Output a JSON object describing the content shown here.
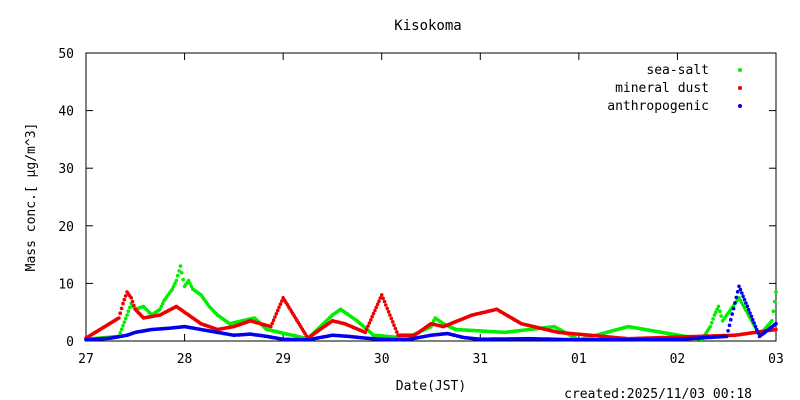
{
  "chart_data": {
    "type": "scatter",
    "title": "Kisokoma",
    "xlabel": "Date(JST)",
    "ylabel": "Mass conc.[ μg/m^3]",
    "ylim": [
      0,
      50
    ],
    "yticks": [
      0,
      10,
      20,
      30,
      40,
      50
    ],
    "xlim": [
      "2025-10-27",
      "2025-11-03"
    ],
    "xticks": [
      "27",
      "28",
      "29",
      "30",
      "31",
      "01",
      "02",
      "03"
    ],
    "grid": false,
    "legend_position": "top-right",
    "series": [
      {
        "name": "sea-salt",
        "color": "#00ee00",
        "points": [
          [
            "2025-10-27 00:00",
            0.3
          ],
          [
            "2025-10-27 08:00",
            0.8
          ],
          [
            "2025-10-27 10:00",
            4.5
          ],
          [
            "2025-10-27 11:00",
            6.5
          ],
          [
            "2025-10-27 12:00",
            5.5
          ],
          [
            "2025-10-27 14:00",
            6.0
          ],
          [
            "2025-10-27 16:00",
            4.5
          ],
          [
            "2025-10-27 18:00",
            5.5
          ],
          [
            "2025-10-27 19:00",
            7.0
          ],
          [
            "2025-10-27 20:00",
            8.0
          ],
          [
            "2025-10-27 21:00",
            9.0
          ],
          [
            "2025-10-27 22:00",
            10.5
          ],
          [
            "2025-10-27 23:00",
            13.0
          ],
          [
            "2025-10-28 00:00",
            9.5
          ],
          [
            "2025-10-28 01:00",
            10.5
          ],
          [
            "2025-10-28 02:00",
            9.0
          ],
          [
            "2025-10-28 04:00",
            8.0
          ],
          [
            "2025-10-28 06:00",
            6.0
          ],
          [
            "2025-10-28 08:00",
            4.5
          ],
          [
            "2025-10-28 11:00",
            3.0
          ],
          [
            "2025-10-28 14:00",
            3.5
          ],
          [
            "2025-10-28 17:00",
            4.0
          ],
          [
            "2025-10-28 20:00",
            2.0
          ],
          [
            "2025-10-29 06:00",
            0.4
          ],
          [
            "2025-10-29 12:00",
            4.5
          ],
          [
            "2025-10-29 14:00",
            5.5
          ],
          [
            "2025-10-29 18:00",
            3.5
          ],
          [
            "2025-10-29 22:00",
            1.0
          ],
          [
            "2025-10-30 06:00",
            0.5
          ],
          [
            "2025-10-30 12:00",
            2.5
          ],
          [
            "2025-10-30 13:00",
            4.0
          ],
          [
            "2025-10-30 15:00",
            3.0
          ],
          [
            "2025-10-30 18:00",
            2.0
          ],
          [
            "2025-10-31 06:00",
            1.5
          ],
          [
            "2025-10-31 12:00",
            2.0
          ],
          [
            "2025-10-31 18:00",
            2.5
          ],
          [
            "2025-11-01 00:00",
            0.2
          ],
          [
            "2025-11-01 12:00",
            2.5
          ],
          [
            "2025-11-02 06:00",
            0.3
          ],
          [
            "2025-11-02 08:00",
            2.5
          ],
          [
            "2025-11-02 09:00",
            4.5
          ],
          [
            "2025-11-02 10:00",
            6.0
          ],
          [
            "2025-11-02 11:00",
            3.5
          ],
          [
            "2025-11-02 15:00",
            7.5
          ],
          [
            "2025-11-02 20:00",
            1.0
          ],
          [
            "2025-11-02 23:00",
            3.5
          ],
          [
            "2025-11-03 00:00",
            8.5
          ]
        ]
      },
      {
        "name": "mineral dust",
        "color": "#ee0000",
        "points": [
          [
            "2025-10-27 00:00",
            0.5
          ],
          [
            "2025-10-27 08:00",
            4.0
          ],
          [
            "2025-10-27 09:00",
            6.5
          ],
          [
            "2025-10-27 10:00",
            8.5
          ],
          [
            "2025-10-27 11:00",
            7.5
          ],
          [
            "2025-10-27 12:00",
            5.5
          ],
          [
            "2025-10-27 14:00",
            4.0
          ],
          [
            "2025-10-27 18:00",
            4.5
          ],
          [
            "2025-10-27 22:00",
            6.0
          ],
          [
            "2025-10-28 00:00",
            5.0
          ],
          [
            "2025-10-28 04:00",
            3.0
          ],
          [
            "2025-10-28 08:00",
            2.0
          ],
          [
            "2025-10-28 12:00",
            2.5
          ],
          [
            "2025-10-28 16:00",
            3.5
          ],
          [
            "2025-10-28 21:00",
            2.5
          ],
          [
            "2025-10-29 00:00",
            7.5
          ],
          [
            "2025-10-29 06:00",
            0.5
          ],
          [
            "2025-10-29 12:00",
            3.5
          ],
          [
            "2025-10-29 15:00",
            3.0
          ],
          [
            "2025-10-29 20:00",
            1.5
          ],
          [
            "2025-10-30 00:00",
            8.0
          ],
          [
            "2025-10-30 04:00",
            1.0
          ],
          [
            "2025-10-30 08:00",
            1.0
          ],
          [
            "2025-10-30 12:00",
            3.0
          ],
          [
            "2025-10-30 15:00",
            2.5
          ],
          [
            "2025-10-30 22:00",
            4.5
          ],
          [
            "2025-10-31 04:00",
            5.5
          ],
          [
            "2025-10-31 10:00",
            3.0
          ],
          [
            "2025-10-31 16:00",
            2.0
          ],
          [
            "2025-10-31 19:00",
            1.5
          ],
          [
            "2025-11-01 12:00",
            0.4
          ],
          [
            "2025-11-02 14:00",
            1.0
          ],
          [
            "2025-11-03 00:00",
            2.0
          ]
        ]
      },
      {
        "name": "anthropogenic",
        "color": "#0000ee",
        "points": [
          [
            "2025-10-27 00:00",
            0.2
          ],
          [
            "2025-10-27 06:00",
            0.5
          ],
          [
            "2025-10-27 10:00",
            1.0
          ],
          [
            "2025-10-27 12:00",
            1.5
          ],
          [
            "2025-10-27 16:00",
            2.0
          ],
          [
            "2025-10-27 20:00",
            2.2
          ],
          [
            "2025-10-28 00:00",
            2.5
          ],
          [
            "2025-10-28 04:00",
            2.0
          ],
          [
            "2025-10-28 08:00",
            1.5
          ],
          [
            "2025-10-28 12:00",
            1.0
          ],
          [
            "2025-10-28 16:00",
            1.2
          ],
          [
            "2025-10-28 20:00",
            0.8
          ],
          [
            "2025-10-29 00:00",
            0.3
          ],
          [
            "2025-10-29 06:00",
            0.2
          ],
          [
            "2025-10-29 12:00",
            1.0
          ],
          [
            "2025-10-29 16:00",
            0.8
          ],
          [
            "2025-10-29 20:00",
            0.5
          ],
          [
            "2025-10-30 00:00",
            0.3
          ],
          [
            "2025-10-30 06:00",
            0.2
          ],
          [
            "2025-10-30 12:00",
            1.0
          ],
          [
            "2025-10-30 16:00",
            1.3
          ],
          [
            "2025-10-30 20:00",
            0.6
          ],
          [
            "2025-10-31 00:00",
            0.3
          ],
          [
            "2025-10-31 12:00",
            0.4
          ],
          [
            "2025-10-31 18:00",
            0.3
          ],
          [
            "2025-11-01 00:00",
            0.2
          ],
          [
            "2025-11-01 12:00",
            0.2
          ],
          [
            "2025-11-02 00:00",
            0.3
          ],
          [
            "2025-11-02 12:00",
            0.8
          ],
          [
            "2025-11-02 15:00",
            9.5
          ],
          [
            "2025-11-02 20:00",
            0.8
          ],
          [
            "2025-11-03 00:00",
            3.0
          ]
        ]
      }
    ]
  },
  "footer": {
    "created": "created:2025/11/03 00:18"
  }
}
